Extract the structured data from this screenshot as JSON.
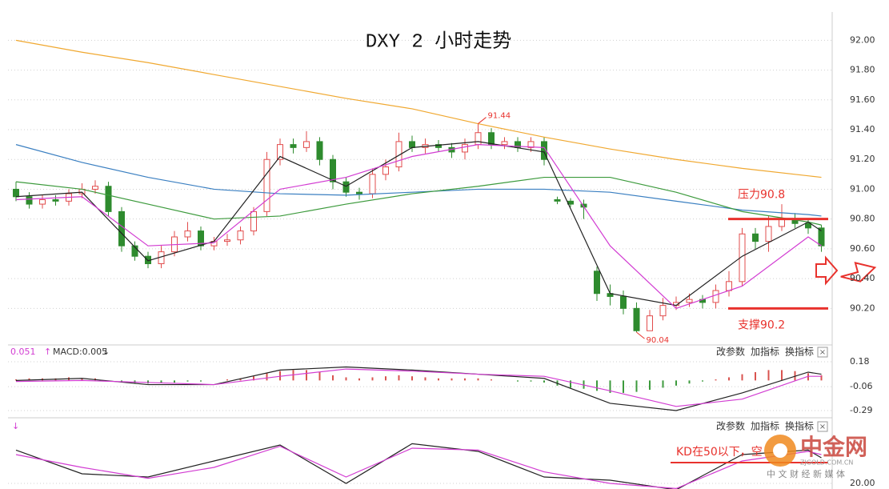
{
  "chart_data": [
    {
      "type": "candlestick",
      "title": "DXY 2 小时走势",
      "ylim": [
        89.96,
        92.19
      ],
      "yticks": [
        {
          "value": 92.0,
          "label": "92.00"
        },
        {
          "value": 91.8,
          "label": "91.80"
        },
        {
          "value": 91.6,
          "label": "91.60"
        },
        {
          "value": 91.4,
          "label": "91.40"
        },
        {
          "value": 91.2,
          "label": "91.20"
        },
        {
          "value": 91.0,
          "label": "91.00"
        },
        {
          "value": 90.8,
          "label": "90.80"
        },
        {
          "value": 90.6,
          "label": "90.60"
        },
        {
          "value": 90.4,
          "label": "90.40"
        },
        {
          "value": 90.2,
          "label": "90.20"
        }
      ],
      "grid": true,
      "up_color": "#e24c4c",
      "down_color": "#2e8b2e",
      "open": [
        91.0,
        90.95,
        90.9,
        90.93,
        90.92,
        90.97,
        91.0,
        91.02,
        90.85,
        90.62,
        90.55,
        90.5,
        90.58,
        90.68,
        90.72,
        90.62,
        90.65,
        90.66,
        90.72,
        90.85,
        91.2,
        91.3,
        91.28,
        91.32,
        91.2,
        91.05,
        90.98,
        90.97,
        91.1,
        91.15,
        91.32,
        91.28,
        91.3,
        91.28,
        91.25,
        91.3,
        91.38,
        91.3,
        91.32,
        91.28,
        91.32,
        90.93,
        90.92,
        90.9,
        90.45,
        90.3,
        90.28,
        90.2,
        90.05,
        90.15,
        90.22,
        90.24,
        90.26,
        90.24,
        90.32,
        90.38,
        90.7,
        90.65,
        90.75,
        90.8,
        90.77,
        90.74
      ],
      "high": [
        91.05,
        90.98,
        90.96,
        90.96,
        91.0,
        91.04,
        91.06,
        91.05,
        90.88,
        90.65,
        90.58,
        90.62,
        90.72,
        90.78,
        90.75,
        90.68,
        90.7,
        90.75,
        90.88,
        91.25,
        91.34,
        91.34,
        91.39,
        91.35,
        91.23,
        91.08,
        91.01,
        91.14,
        91.2,
        91.38,
        91.36,
        91.34,
        91.33,
        91.31,
        91.34,
        91.44,
        91.41,
        91.35,
        91.35,
        91.35,
        91.35,
        90.95,
        90.94,
        90.93,
        90.48,
        90.36,
        90.32,
        90.24,
        90.19,
        90.27,
        90.28,
        90.3,
        90.29,
        90.36,
        90.45,
        90.74,
        90.74,
        90.82,
        90.9,
        90.84,
        90.8,
        90.76
      ],
      "low": [
        90.92,
        90.87,
        90.87,
        90.89,
        90.89,
        90.94,
        90.97,
        90.82,
        90.58,
        90.52,
        90.47,
        90.47,
        90.55,
        90.65,
        90.59,
        90.59,
        90.62,
        90.63,
        90.69,
        90.82,
        91.16,
        91.24,
        91.25,
        91.16,
        91.0,
        90.95,
        90.93,
        90.94,
        91.06,
        91.12,
        91.25,
        91.24,
        91.25,
        91.21,
        91.2,
        91.27,
        91.27,
        91.27,
        91.25,
        91.25,
        91.16,
        90.9,
        90.88,
        90.8,
        90.25,
        90.22,
        90.16,
        90.04,
        90.05,
        90.12,
        90.19,
        90.21,
        90.2,
        90.2,
        90.28,
        90.35,
        90.6,
        90.58,
        90.72,
        90.74,
        90.7,
        90.58
      ],
      "close": [
        90.95,
        90.9,
        90.93,
        90.92,
        90.97,
        91.0,
        91.02,
        90.85,
        90.62,
        90.55,
        90.5,
        90.58,
        90.68,
        90.72,
        90.62,
        90.65,
        90.66,
        90.72,
        90.85,
        91.2,
        91.3,
        91.28,
        91.32,
        91.2,
        91.05,
        90.98,
        90.97,
        91.1,
        91.15,
        91.32,
        91.28,
        91.3,
        91.28,
        91.25,
        91.3,
        91.38,
        91.3,
        91.32,
        91.28,
        91.32,
        91.2,
        90.92,
        90.9,
        90.88,
        90.3,
        90.28,
        90.2,
        90.05,
        90.15,
        90.22,
        90.24,
        90.26,
        90.24,
        90.32,
        90.38,
        90.7,
        90.65,
        90.75,
        90.8,
        90.77,
        90.74,
        90.62
      ],
      "line_x": [
        0,
        5,
        10,
        15,
        20,
        25,
        30,
        35,
        40,
        45,
        50,
        55,
        60,
        61
      ],
      "lines": [
        {
          "color": "#f0a830",
          "values": [
            92.0,
            91.92,
            91.85,
            91.77,
            91.69,
            91.61,
            91.54,
            91.44,
            91.35,
            91.27,
            91.2,
            91.14,
            91.09,
            91.08
          ]
        },
        {
          "color": "#3a7fc1",
          "values": [
            91.3,
            91.18,
            91.08,
            91.0,
            90.97,
            90.96,
            90.98,
            91.0,
            91.0,
            90.98,
            90.92,
            90.86,
            90.83,
            90.82
          ]
        },
        {
          "color": "#3c9a3c",
          "values": [
            91.05,
            91.0,
            90.9,
            90.8,
            90.82,
            90.9,
            90.97,
            91.02,
            91.08,
            91.08,
            90.98,
            90.85,
            90.78,
            90.76
          ]
        },
        {
          "color": "#222222",
          "values": [
            90.95,
            90.98,
            90.52,
            90.65,
            91.22,
            91.02,
            91.28,
            91.32,
            91.25,
            90.3,
            90.22,
            90.55,
            90.78,
            90.72
          ]
        },
        {
          "color": "#d23cd2",
          "values": [
            90.93,
            90.95,
            90.62,
            90.64,
            91.0,
            91.08,
            91.22,
            91.3,
            91.28,
            90.62,
            90.2,
            90.35,
            90.68,
            90.62
          ]
        }
      ],
      "extremes": [
        {
          "label": "91.44",
          "value": 91.44,
          "at": 35
        },
        {
          "label": "90.04",
          "value": 90.04,
          "at": 47
        }
      ],
      "levels": [
        {
          "label": "压力90.8",
          "value": 90.8,
          "color": "#e8322d"
        },
        {
          "label": "支撑90.2",
          "value": 90.2,
          "color": "#e8322d"
        }
      ]
    },
    {
      "type": "macd",
      "header": [
        "0.051",
        "MACD:0.005"
      ],
      "buttons": [
        "改参数",
        "加指标",
        "换指标"
      ],
      "ylim": [
        -0.344,
        0.234
      ],
      "yticks": [
        0.18,
        -0.06,
        -0.29
      ],
      "up_color": "#d9534f",
      "down_color": "#3c9a3c",
      "values": [
        0.01,
        0.02,
        0.02,
        0.02,
        0.03,
        0.02,
        0.02,
        0.0,
        -0.02,
        -0.03,
        -0.03,
        -0.02,
        -0.02,
        -0.01,
        -0.01,
        0.0,
        0.01,
        0.02,
        0.04,
        0.07,
        0.09,
        0.1,
        0.1,
        0.08,
        0.05,
        0.03,
        0.02,
        0.03,
        0.04,
        0.05,
        0.04,
        0.03,
        0.02,
        0.02,
        0.02,
        0.02,
        0.01,
        0.0,
        -0.01,
        -0.01,
        -0.02,
        -0.05,
        -0.07,
        -0.08,
        -0.1,
        -0.12,
        -0.12,
        -0.11,
        -0.09,
        -0.07,
        -0.05,
        -0.03,
        -0.01,
        0.01,
        0.03,
        0.06,
        0.08,
        0.1,
        0.1,
        0.09,
        0.07,
        0.05
      ],
      "line_x": [
        0,
        5,
        10,
        15,
        20,
        25,
        30,
        35,
        40,
        45,
        50,
        55,
        60,
        61
      ],
      "lines": [
        {
          "color": "#222222",
          "values": [
            0.0,
            0.02,
            -0.04,
            -0.04,
            0.1,
            0.13,
            0.1,
            0.06,
            0.02,
            -0.22,
            -0.29,
            -0.12,
            0.08,
            0.06
          ]
        },
        {
          "color": "#d23cd2",
          "values": [
            -0.01,
            0.0,
            -0.02,
            -0.04,
            0.04,
            0.11,
            0.09,
            0.06,
            0.04,
            -0.1,
            -0.25,
            -0.18,
            0.04,
            0.04
          ]
        }
      ]
    },
    {
      "type": "kd",
      "buttons": [
        "改参数",
        "加指标",
        "换指标"
      ],
      "note": "KD在50以下，空",
      "ylim": [
        11.25,
        100
      ],
      "yticks": [
        {
          "value": 20,
          "label": "20.00"
        }
      ],
      "line_x": [
        0,
        5,
        10,
        15,
        20,
        25,
        30,
        35,
        40,
        45,
        50,
        55,
        60,
        61
      ],
      "lines": [
        {
          "color": "#222222",
          "values": [
            72,
            35,
            30,
            55,
            80,
            20,
            82,
            70,
            30,
            25,
            10,
            65,
            72,
            60
          ]
        },
        {
          "color": "#d23cd2",
          "values": [
            65,
            45,
            28,
            45,
            78,
            30,
            75,
            72,
            38,
            20,
            12,
            55,
            70,
            65
          ]
        }
      ],
      "watermark": [
        "中金网",
        "ZJGOLD.COM.CN",
        "中 文 财 经 新 媒 体"
      ]
    }
  ]
}
